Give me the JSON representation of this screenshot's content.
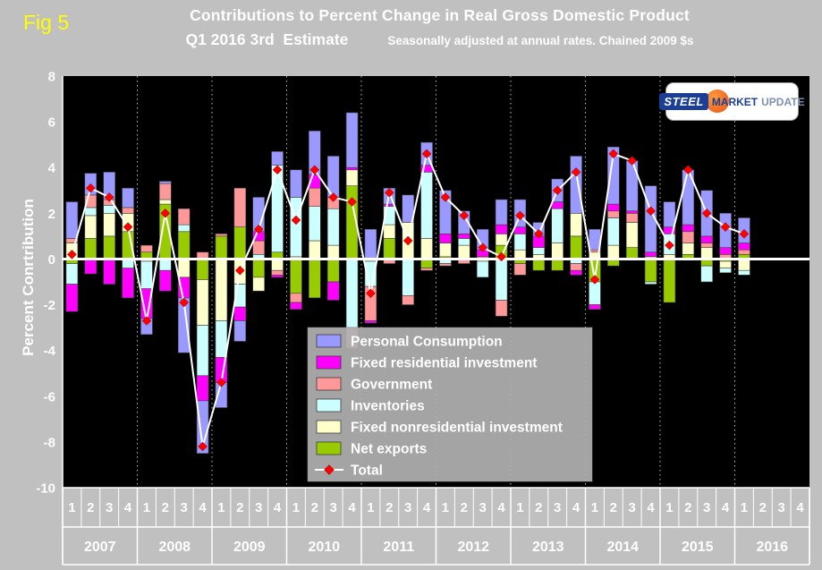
{
  "fig_label": "Fig 5",
  "title": {
    "line1": "Contributions to Percent Change in Real Gross Domestic Product",
    "line2": "Q1 2016 3rd  Estimate",
    "note": "Seasonally adjusted at annual rates. Chained 2009 $s"
  },
  "logo": {
    "steel": "STEEL",
    "market": "MARKET",
    "update": "UPDATE"
  },
  "chart_data": {
    "type": "bar",
    "stacked": true,
    "title": "Contributions to Percent Change in Real Gross Domestic Product",
    "subtitle": "Q1 2016 3rd Estimate — Seasonally adjusted at annual rates. Chained 2009 $s",
    "ylabel": "Percent Conrtribution",
    "xlabel": "",
    "ylim": [
      -10,
      8
    ],
    "yticks": [
      8,
      6,
      4,
      2,
      0,
      -2,
      -4,
      -6,
      -8,
      -10
    ],
    "grid": "vertical-dashed-year-separators",
    "page_background": "#c0c0c0",
    "plot_background": "#000000",
    "legend_position": "inside-bottom-center",
    "legend_background": "#b0b0b0",
    "years": [
      "2007",
      "2008",
      "2009",
      "2010",
      "2011",
      "2012",
      "2013",
      "2014",
      "2015",
      "2016"
    ],
    "quarter_labels": [
      "1",
      "2",
      "3",
      "4"
    ],
    "categories": [
      "2007Q1",
      "2007Q2",
      "2007Q3",
      "2007Q4",
      "2008Q1",
      "2008Q2",
      "2008Q3",
      "2008Q4",
      "2009Q1",
      "2009Q2",
      "2009Q3",
      "2009Q4",
      "2010Q1",
      "2010Q2",
      "2010Q3",
      "2010Q4",
      "2011Q1",
      "2011Q2",
      "2011Q3",
      "2011Q4",
      "2012Q1",
      "2012Q2",
      "2012Q3",
      "2012Q4",
      "2013Q1",
      "2013Q2",
      "2013Q3",
      "2013Q4",
      "2014Q1",
      "2014Q2",
      "2014Q3",
      "2014Q4",
      "2015Q1",
      "2015Q2",
      "2015Q3",
      "2015Q4",
      "2016Q1"
    ],
    "empty_trailing_slots": 3,
    "series": [
      {
        "name": "Personal Consumption",
        "color": "#9999ff",
        "values": [
          1.6,
          0.95,
          1.2,
          0.85,
          -0.7,
          0.1,
          -2.4,
          -2.3,
          -1.1,
          -0.9,
          1.5,
          0.6,
          1.2,
          1.9,
          1.8,
          2.4,
          1.3,
          0.7,
          1.2,
          1.0,
          1.9,
          1.0,
          0.9,
          1.1,
          1.2,
          0.6,
          1.0,
          2.5,
          0.9,
          2.5,
          2.2,
          2.9,
          1.1,
          2.4,
          2.0,
          1.5,
          1.1
        ]
      },
      {
        "name": "Fixed residential investment",
        "color": "#ff00ff",
        "values": [
          -1.2,
          -0.65,
          -1.1,
          -1.3,
          -1.3,
          -0.9,
          -0.9,
          -1.1,
          -1.1,
          -0.6,
          0.4,
          -0.1,
          -0.3,
          0.6,
          -0.8,
          0.1,
          -0.1,
          0.1,
          0.0,
          0.3,
          0.4,
          0.2,
          0.3,
          0.4,
          0.3,
          0.5,
          0.3,
          -0.2,
          -0.2,
          0.3,
          0.1,
          0.2,
          0.3,
          0.3,
          0.3,
          0.3,
          0.3
        ]
      },
      {
        "name": "Government",
        "color": "#ff9999",
        "values": [
          0.2,
          0.55,
          0.25,
          0.25,
          0.3,
          0.7,
          0.7,
          0.3,
          0.1,
          1.7,
          0.6,
          -0.2,
          -0.4,
          0.8,
          0.5,
          -0.9,
          -1.5,
          -0.2,
          -0.4,
          -0.1,
          -0.1,
          -0.2,
          0.1,
          -0.7,
          -0.5,
          0.0,
          0.0,
          -0.3,
          0.1,
          0.3,
          0.4,
          0.0,
          0.0,
          0.5,
          0.2,
          0.2,
          0.2
        ]
      },
      {
        "name": "Inventories",
        "color": "#ccffff",
        "values": [
          -0.9,
          0.35,
          0.35,
          -0.4,
          -1.2,
          -0.5,
          0.3,
          -2.2,
          -1.6,
          -1.0,
          0.2,
          3.8,
          2.6,
          1.5,
          1.6,
          -3.0,
          -1.1,
          0.8,
          -1.6,
          2.9,
          -0.2,
          0.3,
          -0.7,
          -1.8,
          0.7,
          0.3,
          1.5,
          -0.2,
          -1.0,
          1.2,
          0.0,
          -0.1,
          0.9,
          0.0,
          -0.7,
          -0.2,
          -0.2
        ]
      },
      {
        "name": "Fixed nonresidential investment",
        "color": "#ffffcc",
        "values": [
          0.7,
          1.0,
          1.0,
          0.8,
          -0.1,
          0.2,
          -0.8,
          -2.0,
          -2.7,
          -1.1,
          -0.6,
          -0.5,
          0.1,
          0.8,
          0.6,
          0.7,
          -0.1,
          0.6,
          1.6,
          0.9,
          0.6,
          0.6,
          -0.1,
          0.5,
          0.4,
          0.2,
          0.7,
          1.0,
          0.3,
          0.6,
          1.1,
          0.1,
          0.2,
          0.5,
          0.5,
          -0.3,
          -0.5
        ]
      },
      {
        "name": "Net exports",
        "color": "#99cc00",
        "values": [
          -0.2,
          0.9,
          1.0,
          1.2,
          0.3,
          2.4,
          1.2,
          -0.9,
          1.0,
          1.4,
          -0.8,
          0.3,
          -1.5,
          -1.7,
          -1.0,
          3.2,
          0.0,
          0.9,
          0.0,
          -0.4,
          0.1,
          0.0,
          0.0,
          0.6,
          -0.2,
          -0.5,
          -0.5,
          1.0,
          -1.0,
          -0.3,
          0.5,
          -1.0,
          -1.9,
          0.2,
          -0.3,
          -0.1,
          0.2
        ]
      }
    ],
    "total": {
      "name": "Total",
      "marker": "diamond",
      "marker_color": "#ff0000",
      "line_color": "#ffffff",
      "values": [
        0.2,
        3.1,
        2.7,
        1.4,
        -2.7,
        2.0,
        -1.9,
        -8.2,
        -5.4,
        -0.5,
        1.3,
        3.9,
        1.7,
        3.9,
        2.7,
        2.5,
        -1.5,
        2.9,
        0.8,
        4.6,
        2.7,
        1.9,
        0.5,
        0.1,
        1.9,
        1.1,
        3.0,
        3.8,
        -0.9,
        4.6,
        4.3,
        2.1,
        0.6,
        3.9,
        2.0,
        1.4,
        1.1
      ]
    }
  }
}
